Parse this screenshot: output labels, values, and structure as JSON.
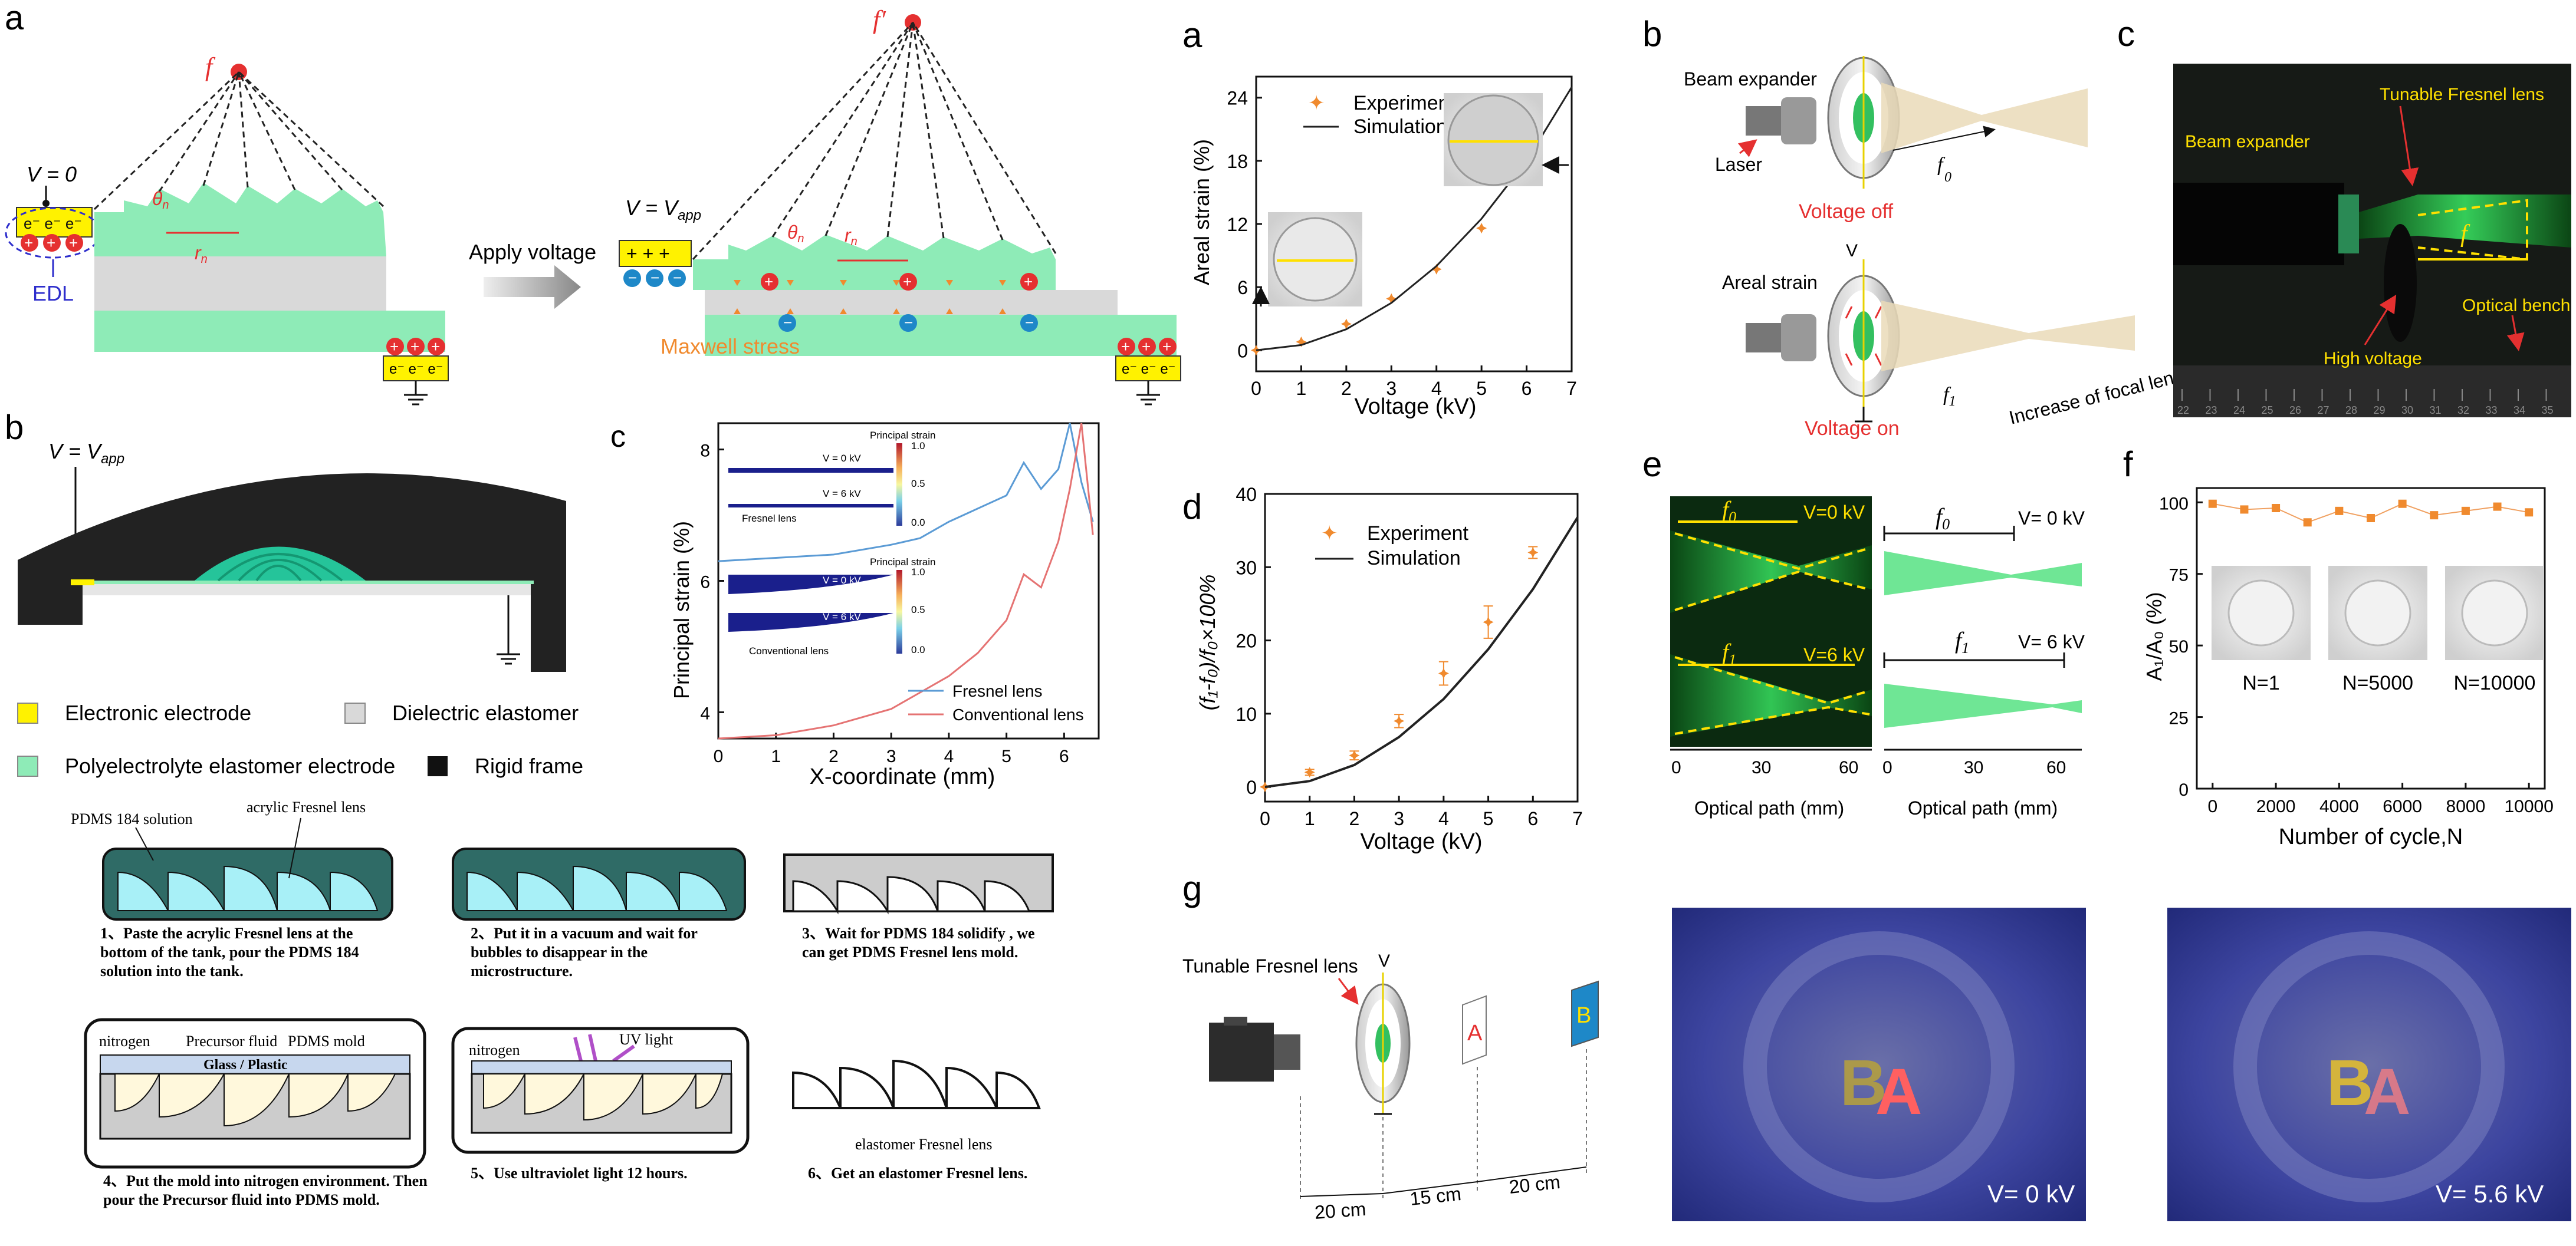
{
  "panel_a_left": {
    "label": "a",
    "v0": "V = 0",
    "vapp": "V = V",
    "vapp_sub": "app",
    "f": "f",
    "f_prime": "f′",
    "theta": "θ",
    "theta_sub": "n",
    "rn": "r",
    "rn_sub": "n",
    "apply_voltage": "Apply voltage",
    "edl": "EDL",
    "maxwell": "Maxwell stress"
  },
  "panel_b_left": {
    "label": "b",
    "vapp": "V = V",
    "vapp_sub": "app",
    "legend": [
      "Electronic electrode",
      "Dielectric elastomer",
      "Polyelectrolyte elastomer electrode",
      "Rigid frame"
    ]
  },
  "panel_c_left": {
    "label": "c",
    "ylabel": "Principal strain (%)",
    "xlabel": "X-coordinate (mm)",
    "inset_title": "Principal strain",
    "v0": "V = 0 kV",
    "v6": "V = 6 kV",
    "fresnel": "Fresnel lens",
    "conventional": "Conventional lens",
    "cb_ticks": [
      "1.0",
      "0.5",
      "0.0"
    ]
  },
  "fabrication": {
    "s1_tank_label1": "PDMS 184 solution",
    "s1_tank_label2": "acrylic Fresnel lens",
    "s1": "1、Paste the acrylic Fresnel lens at the bottom of the tank, pour the PDMS 184 solution into the tank.",
    "s2": "2、Put it in a vacuum and wait for bubbles to disappear in the microstructure.",
    "s3": "3、Wait for PDMS 184 solidify , we can get PDMS Fresnel lens mold.",
    "s4_nitrogen": "nitrogen",
    "s4_precursor": "Precursor fluid",
    "s4_mold": "PDMS mold",
    "s4_glass": "Glass / Plastic",
    "s4": "4、Put the mold into nitrogen environment. Then pour the Precursor fluid into PDMS mold.",
    "s5_nitrogen": "nitrogen",
    "s5_uv": "UV light",
    "s5": "5、Use ultraviolet light 12 hours.",
    "s6_label": "elastomer Fresnel lens",
    "s6": "6、Get an elastomer Fresnel lens."
  },
  "panel_a_right": {
    "label": "a",
    "ylabel": "Areal strain (%)",
    "xlabel": "Voltage (kV)",
    "legend_exp": "Experiment",
    "legend_sim": "Simulation"
  },
  "panel_b_right": {
    "label": "b",
    "beam_expander": "Beam expander",
    "laser": "Laser",
    "voltage_off": "Voltage off",
    "areal_strain": "Areal strain",
    "v": "V",
    "voltage_on": "Voltage on",
    "increase": "Increase of focal length",
    "f0": "f",
    "f0_sub": "0",
    "f1": "f",
    "f1_sub": "1"
  },
  "panel_c_right": {
    "label": "c",
    "beam_expander": "Beam expander",
    "tunable": "Tunable Fresnel lens",
    "f": "f",
    "high_voltage": "High voltage",
    "optical_bench": "Optical bench",
    "ruler": [
      "22",
      "23",
      "24",
      "25",
      "26",
      "27",
      "28",
      "29",
      "30",
      "31",
      "32",
      "33",
      "34",
      "35"
    ]
  },
  "panel_d_right": {
    "label": "d",
    "ylabel": "(f₁-f₀)/f₀×100%",
    "xlabel": "Voltage (kV)",
    "legend_exp": "Experiment",
    "legend_sim": "Simulation"
  },
  "panel_e_right": {
    "label": "e",
    "v0": "V=0 kV",
    "v6": "V=6 kV",
    "v0b": "V= 0 kV",
    "v6b": "V= 6 kV",
    "f0": "f",
    "f0_sub": "0",
    "f1": "f",
    "f1_sub": "1",
    "xlabel": "Optical path (mm)",
    "xticks": [
      "0",
      "30",
      "60"
    ]
  },
  "panel_f_right": {
    "label": "f",
    "ylabel": "A₁/A₀ (%)",
    "xlabel": "Number of cycle,N",
    "insets": [
      "N=1",
      "N=5000",
      "N=10000"
    ]
  },
  "panel_g_right": {
    "label": "g",
    "tunable": "Tunable Fresnel lens",
    "v": "V",
    "letter_a": "A",
    "letter_b": "B",
    "d1": "20 cm",
    "d2": "15 cm",
    "d3": "20 cm",
    "photo1_v": "V= 0 kV",
    "photo2_v": "V= 5.6 kV",
    "photo_letters": "BA"
  },
  "colors": {
    "green": "#8EEBB7",
    "yellow": "#FFF200",
    "orange": "#F08A2E",
    "blue": "#5B9BD5",
    "red": "#E57373",
    "accent_red": "#E53030"
  },
  "chart_data": [
    {
      "type": "scatter",
      "title": "",
      "xlabel": "Voltage (kV)",
      "ylabel": "Areal strain (%)",
      "xlim": [
        0,
        7
      ],
      "ylim": [
        -2,
        26
      ],
      "xticks": [
        0,
        1,
        2,
        3,
        4,
        5,
        6,
        7
      ],
      "yticks": [
        0,
        6,
        12,
        18,
        24
      ],
      "series": [
        {
          "name": "Experiment",
          "x": [
            0,
            1,
            2,
            3,
            4,
            5,
            6
          ],
          "y": [
            0,
            0.8,
            2.5,
            4.9,
            7.7,
            11.6,
            18.1
          ]
        },
        {
          "name": "Simulation",
          "x": [
            0,
            1,
            2,
            3,
            4,
            5,
            6,
            7
          ],
          "y": [
            0,
            0.5,
            2.0,
            4.5,
            8.0,
            12.5,
            18.0,
            25.0
          ]
        }
      ]
    },
    {
      "type": "scatter",
      "title": "",
      "xlabel": "Voltage (kV)",
      "ylabel": "(f₁-f₀)/f₀×100%",
      "xlim": [
        0,
        7
      ],
      "ylim": [
        -2,
        40
      ],
      "xticks": [
        0,
        1,
        2,
        3,
        4,
        5,
        6,
        7
      ],
      "yticks": [
        0,
        10,
        20,
        30,
        40
      ],
      "series": [
        {
          "name": "Experiment",
          "x": [
            0,
            1,
            2,
            3,
            4,
            5,
            6
          ],
          "y": [
            0,
            2,
            4.3,
            9,
            15.5,
            22.5,
            32
          ],
          "err": [
            0,
            0.4,
            0.6,
            0.9,
            1.6,
            2.2,
            0.8
          ]
        },
        {
          "name": "Simulation",
          "x": [
            0,
            1,
            2,
            3,
            4,
            5,
            6,
            7
          ],
          "y": [
            0,
            0.8,
            3.0,
            6.8,
            12,
            18.8,
            27,
            36.8
          ]
        }
      ]
    },
    {
      "type": "line",
      "title": "",
      "xlabel": "X-coordinate (mm)",
      "ylabel": "Principal strain (%)",
      "xlim": [
        0,
        6.6
      ],
      "ylim": [
        3.6,
        8.4
      ],
      "xticks": [
        0,
        1,
        2,
        3,
        4,
        5,
        6
      ],
      "yticks": [
        4,
        6,
        8
      ],
      "series": [
        {
          "name": "Fresnel lens",
          "x": [
            0,
            1,
            2,
            3,
            3.5,
            4,
            4.5,
            5,
            5.3,
            5.6,
            5.9,
            6.1,
            6.3,
            6.5
          ],
          "y": [
            6.3,
            6.35,
            6.4,
            6.55,
            6.65,
            6.9,
            7.1,
            7.3,
            7.8,
            7.4,
            7.7,
            8.4,
            7.5,
            6.9
          ]
        },
        {
          "name": "Conventional lens",
          "x": [
            0,
            1,
            2,
            3,
            3.5,
            4,
            4.5,
            5,
            5.3,
            5.6,
            5.9,
            6.1,
            6.3,
            6.5
          ],
          "y": [
            3.6,
            3.65,
            3.8,
            4.05,
            4.3,
            4.55,
            4.9,
            5.4,
            6.1,
            5.9,
            6.6,
            7.4,
            8.4,
            6.7
          ]
        }
      ]
    },
    {
      "type": "line",
      "title": "",
      "xlabel": "Number of cycle,N",
      "ylabel": "A₁/A₀ (%)",
      "xlim": [
        -500,
        10500
      ],
      "ylim": [
        0,
        105
      ],
      "xticks": [
        0,
        2000,
        4000,
        6000,
        8000,
        10000
      ],
      "yticks": [
        0,
        25,
        50,
        75,
        100
      ],
      "series": [
        {
          "name": "",
          "x": [
            0,
            1000,
            2000,
            3000,
            4000,
            5000,
            6000,
            7000,
            8000,
            9000,
            10000
          ],
          "y": [
            99.5,
            97.5,
            98,
            93,
            97,
            94.5,
            99.5,
            95.5,
            97,
            98.5,
            96.5
          ]
        }
      ]
    }
  ]
}
